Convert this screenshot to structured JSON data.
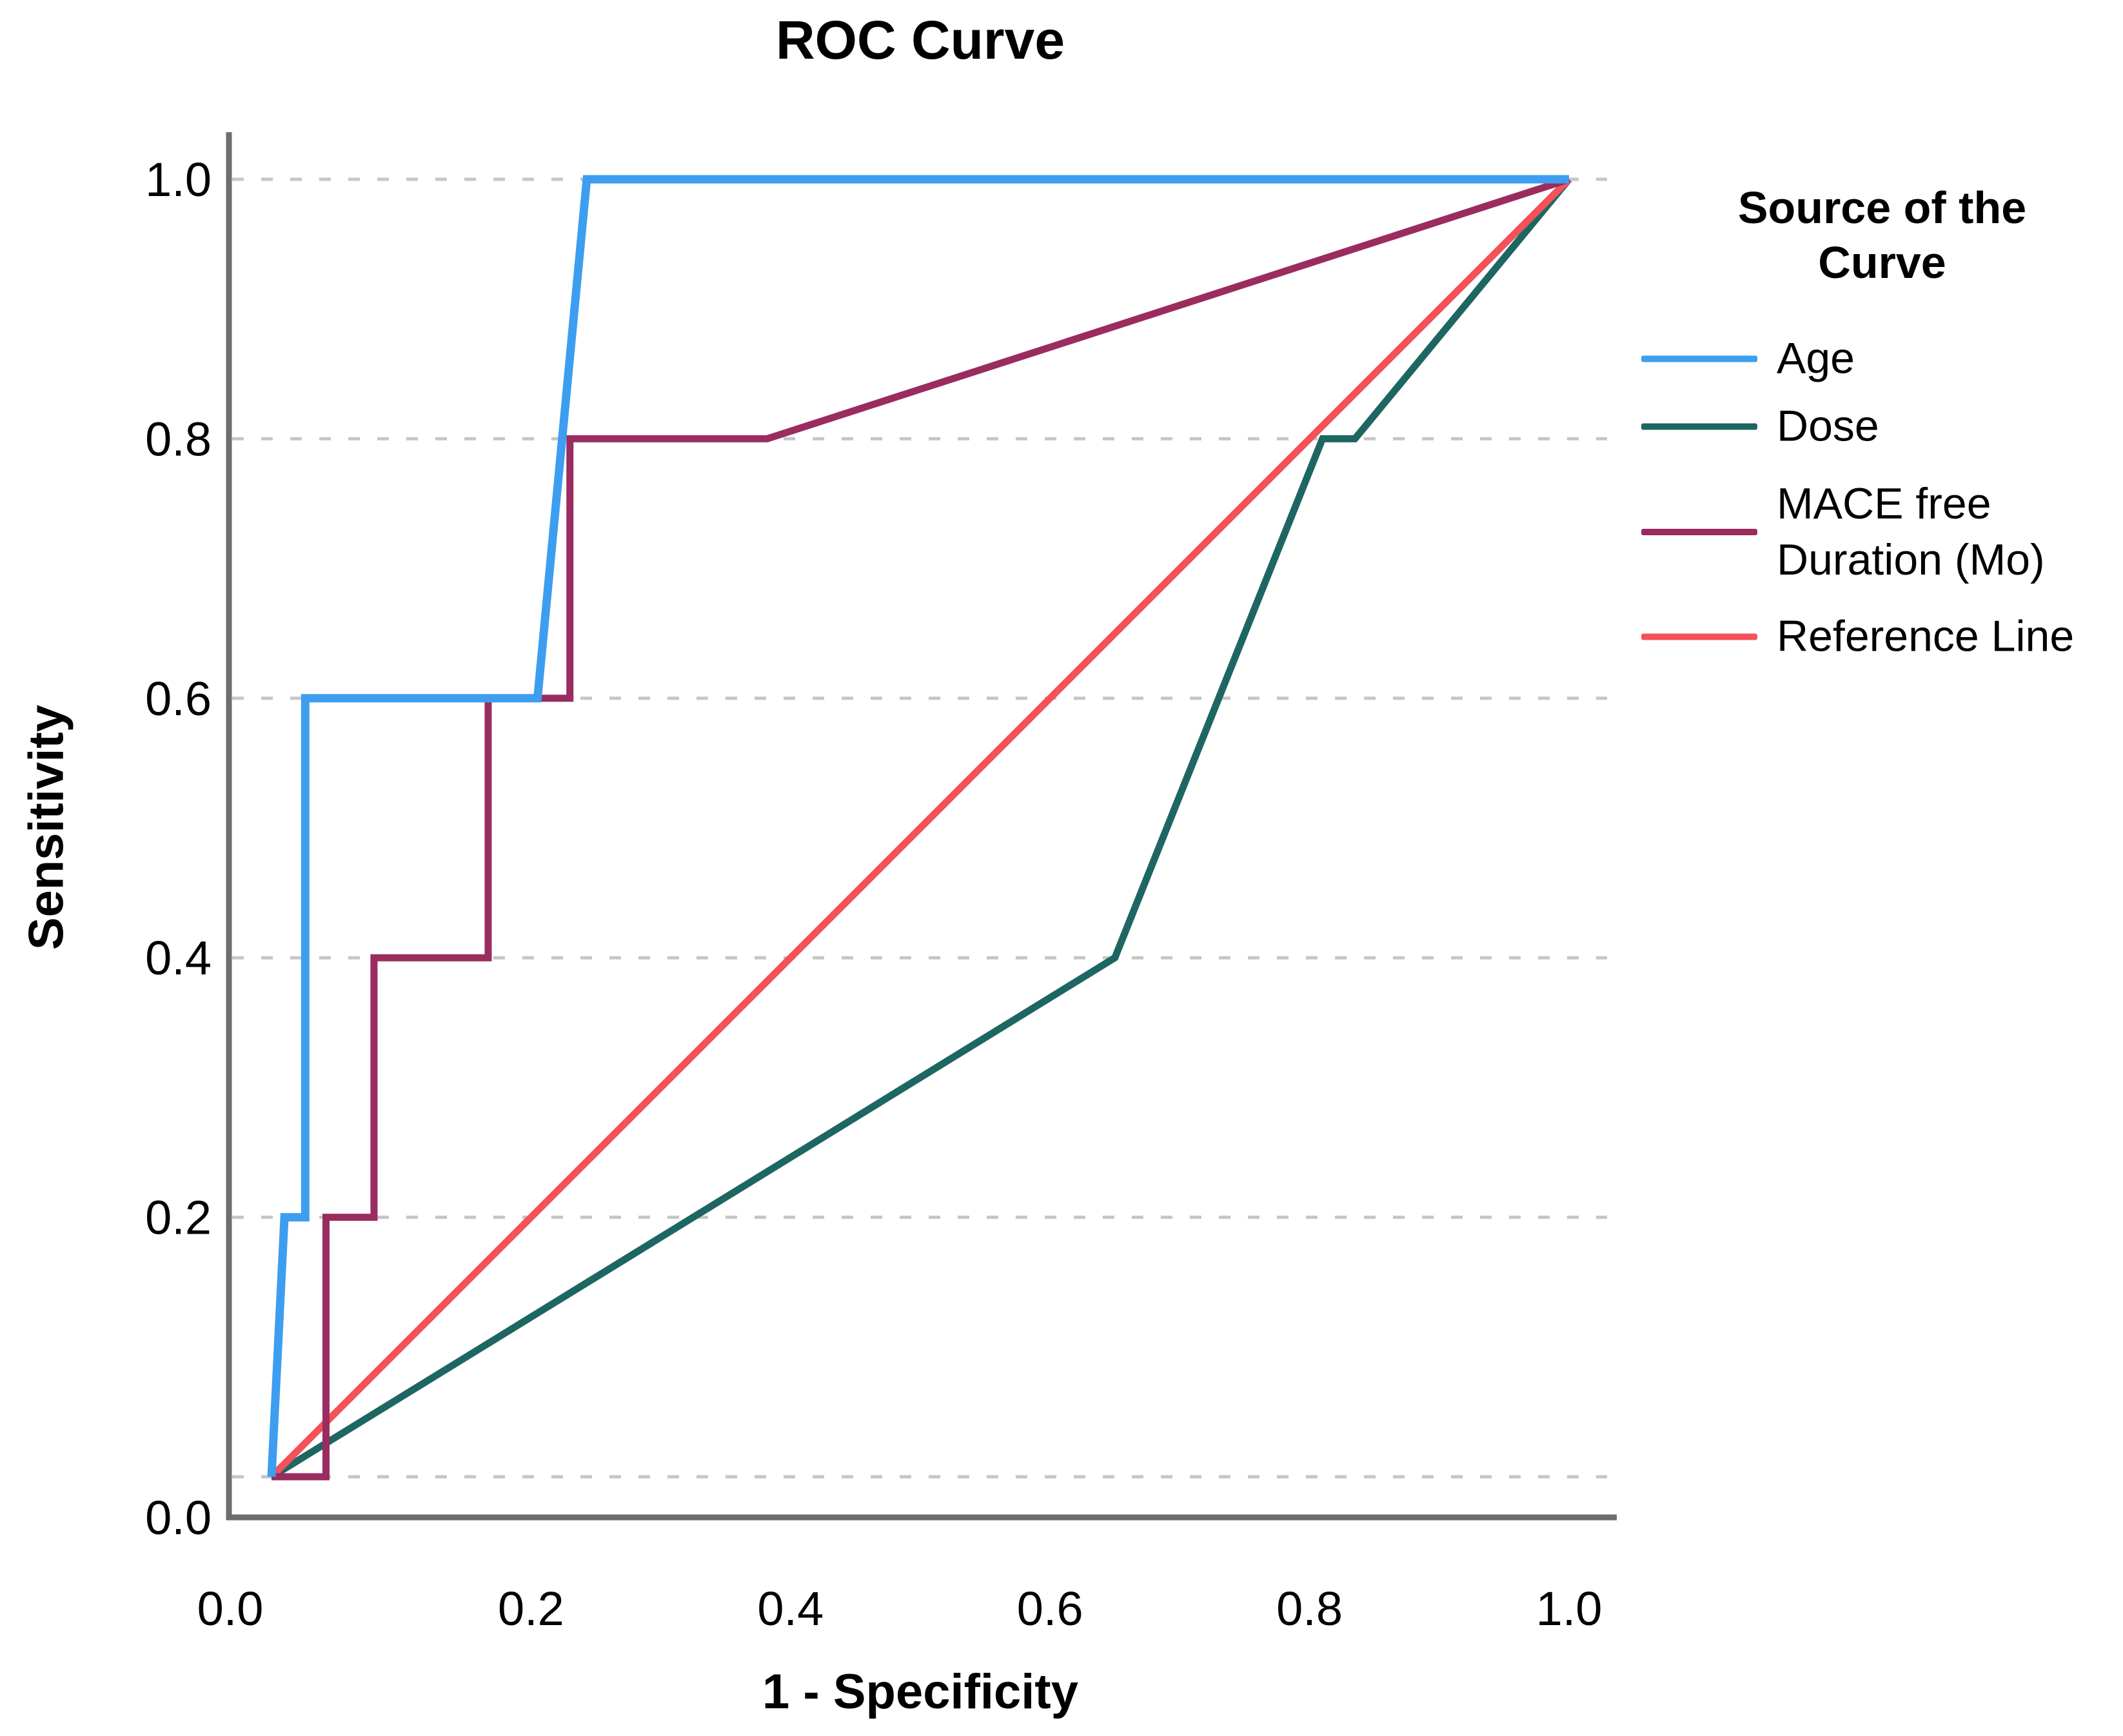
{
  "chart": {
    "title": "ROC Curve",
    "x_axis_label": "1 - Specificity",
    "y_axis_label": "Sensitivity",
    "x_tick_labels": [
      "0.0",
      "0.2",
      "0.4",
      "0.6",
      "0.8",
      "1.0"
    ],
    "y_tick_labels": [
      "0.0",
      "0.2",
      "0.4",
      "0.6",
      "0.8",
      "1.0"
    ]
  },
  "legend": {
    "title": "Source of the Curve",
    "items": [
      {
        "id": "age",
        "label": "Age",
        "color": "#3D9EF0"
      },
      {
        "id": "dose",
        "label": "Dose",
        "color": "#1E6662"
      },
      {
        "id": "mace-free-duration",
        "label": "MACE free Duration (Mo)",
        "color": "#9A2C60"
      },
      {
        "id": "reference-line",
        "label": "Reference Line",
        "color": "#F4525B"
      }
    ]
  },
  "chart_data": {
    "type": "line",
    "title": "ROC Curve",
    "xlabel": "1 - Specificity",
    "ylabel": "Sensitivity",
    "xlim": [
      0,
      1
    ],
    "ylim": [
      0,
      1
    ],
    "x_ticks": [
      0,
      0.2,
      0.4,
      0.6,
      0.8,
      1.0
    ],
    "y_ticks": [
      0,
      0.2,
      0.4,
      0.6,
      0.8,
      1.0
    ],
    "grid": "horizontal-dashed",
    "grid_color": "#C6C6C6",
    "axis_color": "#6E6E6E",
    "legend_position": "right",
    "legend_title": "Source of the Curve",
    "series": [
      {
        "name": "Age",
        "color": "#3D9EF0",
        "stroke_width": 13,
        "z": 4,
        "points": [
          [
            0,
            0
          ],
          [
            0.01,
            0.2
          ],
          [
            0.026,
            0.2
          ],
          [
            0.026,
            0.6
          ],
          [
            0.205,
            0.6
          ],
          [
            0.243,
            1.0
          ],
          [
            1.0,
            1.0
          ]
        ]
      },
      {
        "name": "Dose",
        "color": "#1E6662",
        "stroke_width": 11,
        "z": 1,
        "points": [
          [
            0,
            0
          ],
          [
            0.65,
            0.4
          ],
          [
            0.81,
            0.8
          ],
          [
            0.835,
            0.8
          ],
          [
            1.0,
            1.0
          ]
        ]
      },
      {
        "name": "MACE free Duration (Mo)",
        "color": "#9A2C60",
        "stroke_width": 11,
        "z": 3,
        "points": [
          [
            0,
            0
          ],
          [
            0.042,
            0
          ],
          [
            0.042,
            0.2
          ],
          [
            0.079,
            0.2
          ],
          [
            0.079,
            0.4
          ],
          [
            0.167,
            0.4
          ],
          [
            0.167,
            0.6
          ],
          [
            0.23,
            0.6
          ],
          [
            0.23,
            0.8
          ],
          [
            0.382,
            0.8
          ],
          [
            1.0,
            1.0
          ]
        ]
      },
      {
        "name": "Reference Line",
        "color": "#F4525B",
        "stroke_width": 11,
        "z": 2,
        "points": [
          [
            0,
            0
          ],
          [
            1.0,
            1.0
          ]
        ]
      }
    ]
  }
}
